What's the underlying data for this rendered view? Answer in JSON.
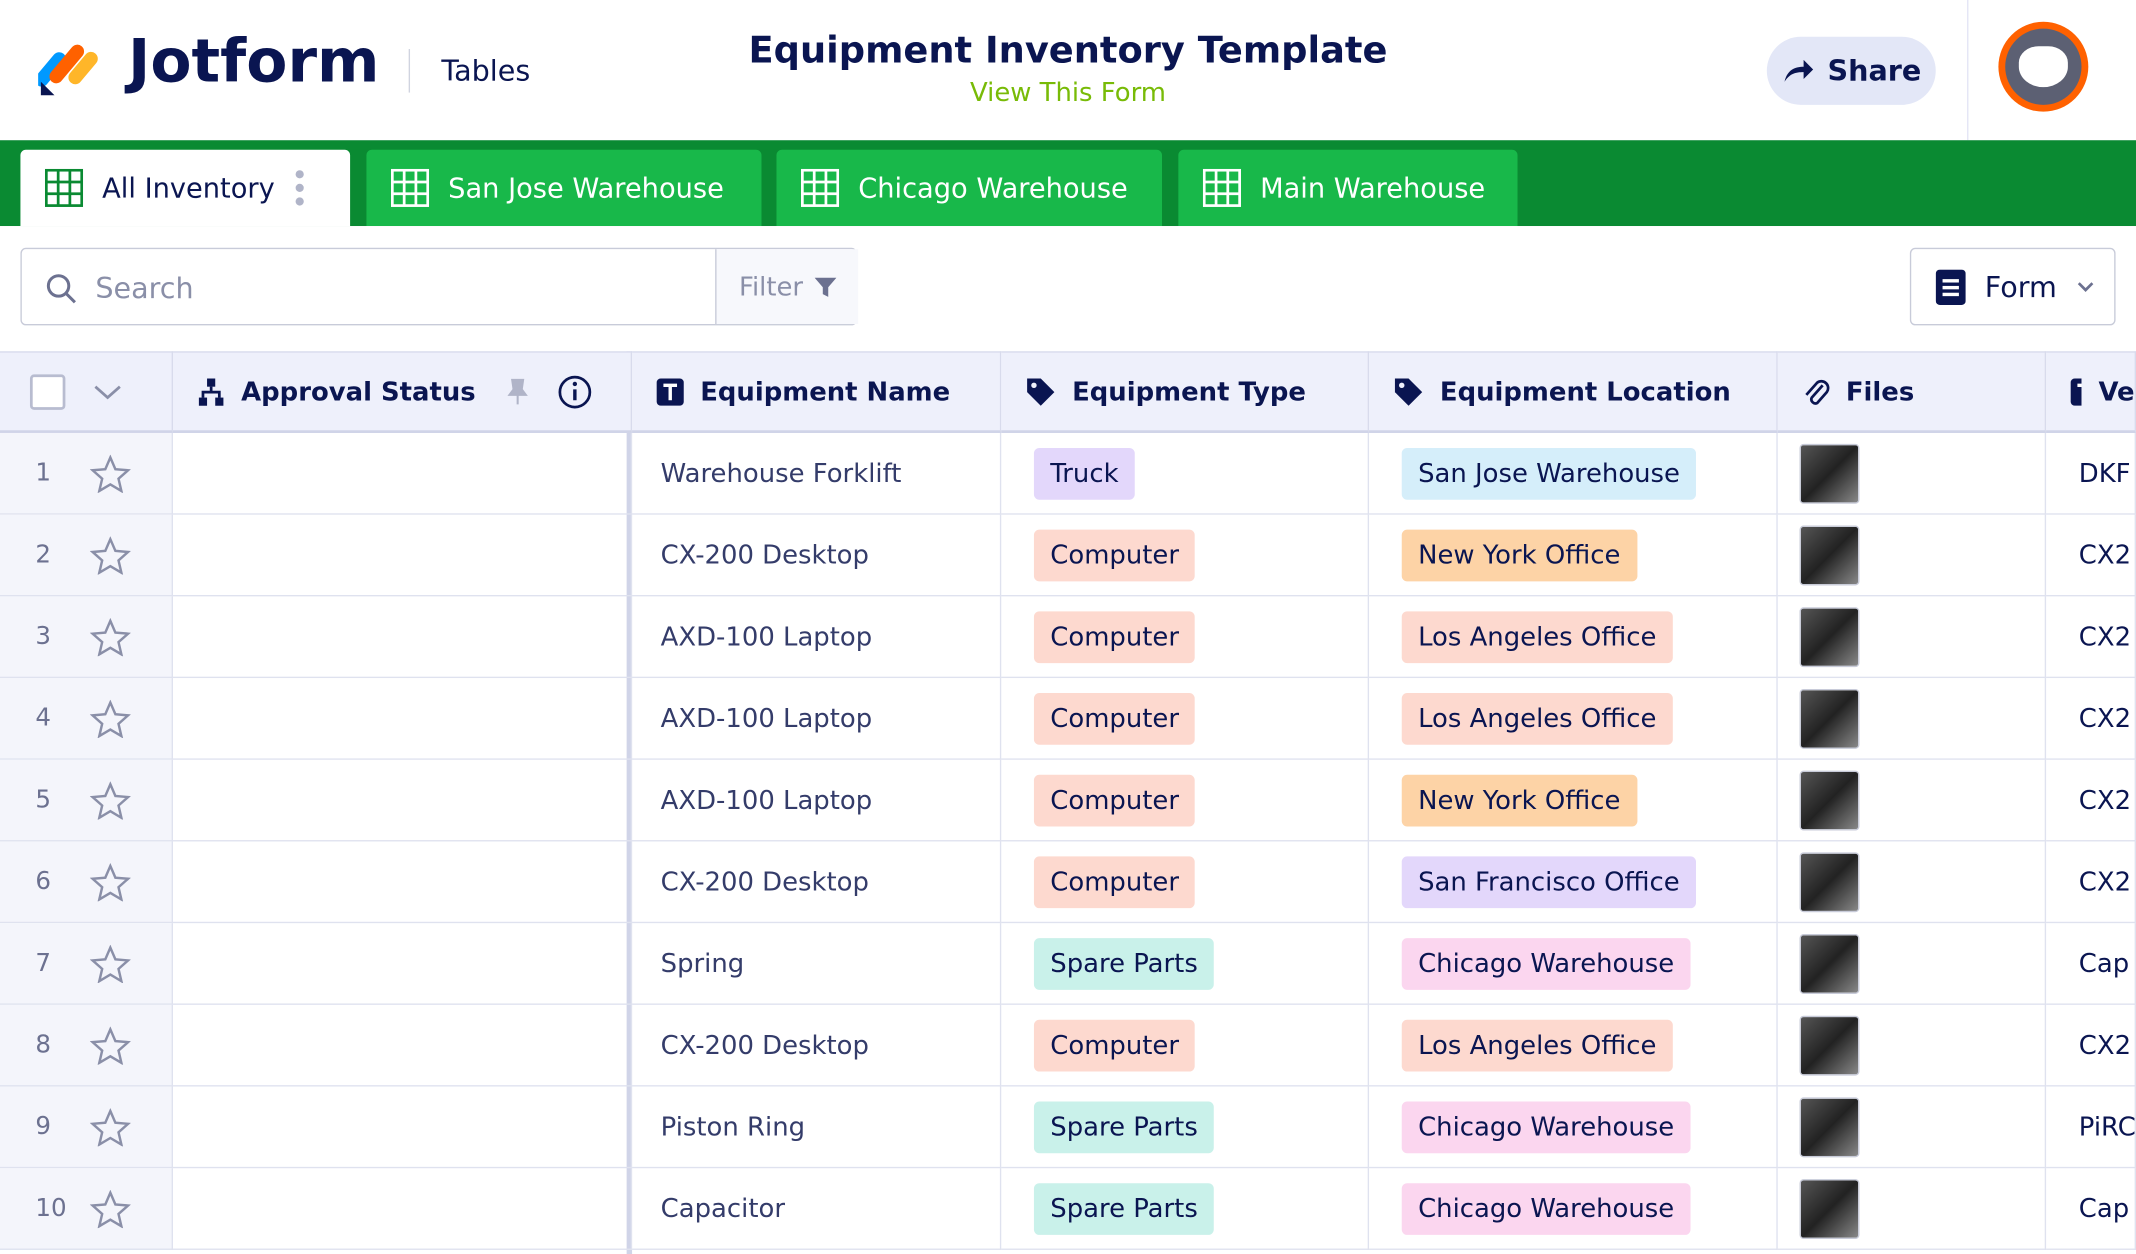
{
  "header": {
    "brand": "Jotform",
    "section": "Tables",
    "title": "Equipment Inventory Template",
    "subtitle": "View This Form",
    "share": "Share"
  },
  "tabs": [
    "All Inventory",
    "San Jose Warehouse",
    "Chicago Warehouse",
    "Main Warehouse"
  ],
  "toolbar": {
    "search": "Search",
    "filter": "Filter",
    "form": "Form"
  },
  "table": {
    "columns": [
      "Approval Status",
      "Equipment Name",
      "Equipment Type",
      "Equipment Location",
      "Files",
      "Ve"
    ],
    "rows": [
      {
        "num": "1",
        "name": "Warehouse Forklift",
        "type": {
          "label": "Truck",
          "color": "#e3d7fb"
        },
        "location": {
          "label": "San Jose Warehouse",
          "color": "#d5eefa"
        },
        "extra": "DKF"
      },
      {
        "num": "2",
        "name": "CX-200 Desktop",
        "type": {
          "label": "Computer",
          "color": "#fdd9cf"
        },
        "location": {
          "label": "New York Office",
          "color": "#fdd3a6"
        },
        "extra": "CX2"
      },
      {
        "num": "3",
        "name": "AXD-100 Laptop",
        "type": {
          "label": "Computer",
          "color": "#fdd9cf"
        },
        "location": {
          "label": "Los Angeles Office",
          "color": "#fdd9cf"
        },
        "extra": "CX2"
      },
      {
        "num": "4",
        "name": "AXD-100 Laptop",
        "type": {
          "label": "Computer",
          "color": "#fdd9cf"
        },
        "location": {
          "label": "Los Angeles Office",
          "color": "#fdd9cf"
        },
        "extra": "CX2"
      },
      {
        "num": "5",
        "name": "AXD-100 Laptop",
        "type": {
          "label": "Computer",
          "color": "#fdd9cf"
        },
        "location": {
          "label": "New York Office",
          "color": "#fdd3a6"
        },
        "extra": "CX2"
      },
      {
        "num": "6",
        "name": "CX-200 Desktop",
        "type": {
          "label": "Computer",
          "color": "#fdd9cf"
        },
        "location": {
          "label": "San Francisco Office",
          "color": "#e3d7fb"
        },
        "extra": "CX2"
      },
      {
        "num": "7",
        "name": "Spring",
        "type": {
          "label": "Spare Parts",
          "color": "#c9f1ea"
        },
        "location": {
          "label": "Chicago Warehouse",
          "color": "#fbd6ef"
        },
        "extra": "Cap"
      },
      {
        "num": "8",
        "name": "CX-200 Desktop",
        "type": {
          "label": "Computer",
          "color": "#fdd9cf"
        },
        "location": {
          "label": "Los Angeles Office",
          "color": "#fdd9cf"
        },
        "extra": "CX2"
      },
      {
        "num": "9",
        "name": "Piston Ring",
        "type": {
          "label": "Spare Parts",
          "color": "#c9f1ea"
        },
        "location": {
          "label": "Chicago Warehouse",
          "color": "#fbd6ef"
        },
        "extra": "PiRC"
      },
      {
        "num": "10",
        "name": "Capacitor",
        "type": {
          "label": "Spare Parts",
          "color": "#c9f1ea"
        },
        "location": {
          "label": "Chicago Warehouse",
          "color": "#fbd6ef"
        },
        "extra": "Cap"
      }
    ]
  }
}
